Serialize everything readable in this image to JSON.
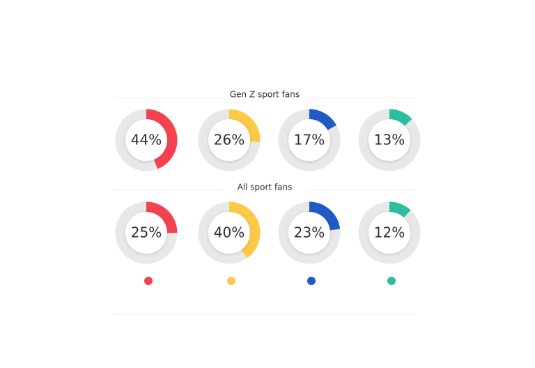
{
  "chart_data": [
    {
      "type": "donut",
      "title": "Gen Z sport fans",
      "categories": [
        null,
        null,
        null,
        null
      ],
      "values": [
        44,
        26,
        17,
        13
      ],
      "value_labels": [
        "44%",
        "26%",
        "17%",
        "13%"
      ],
      "colors": [
        "#f4434f",
        "#fdc947",
        "#1f5bc6",
        "#2bbfa0"
      ]
    },
    {
      "type": "donut",
      "title": "All sport fans",
      "categories": [
        null,
        null,
        null,
        null
      ],
      "values": [
        25,
        40,
        23,
        12
      ],
      "value_labels": [
        "25%",
        "40%",
        "23%",
        "12%"
      ],
      "colors": [
        "#f4434f",
        "#fdc947",
        "#1f5bc6",
        "#2bbfa0"
      ]
    }
  ]
}
